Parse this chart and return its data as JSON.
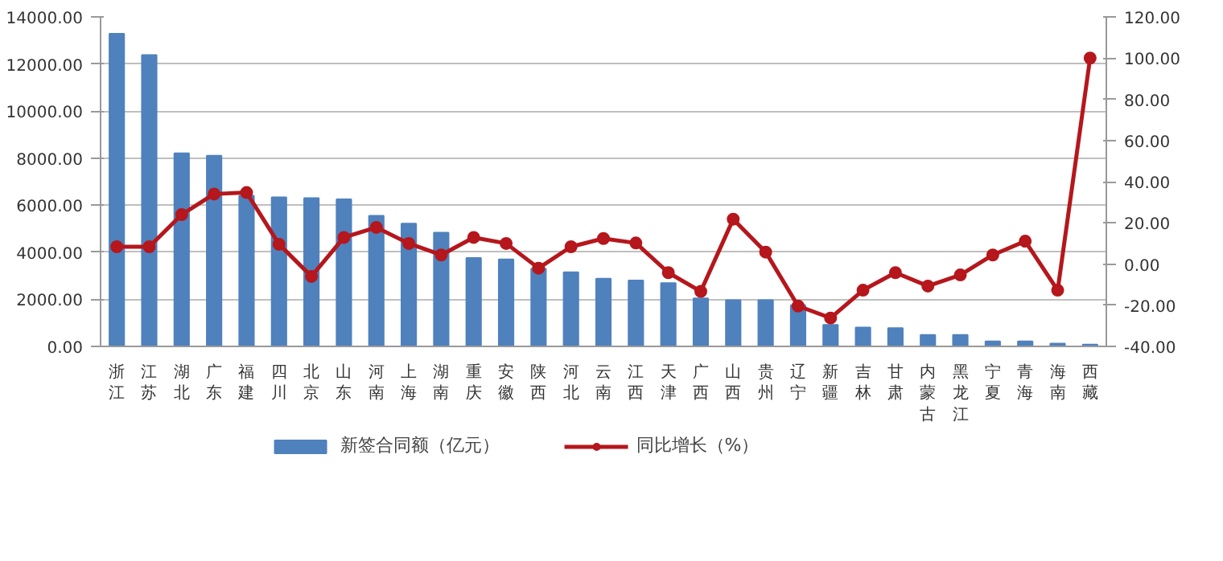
{
  "chart_data": {
    "type": "bar",
    "categories": [
      "浙江",
      "江苏",
      "湖北",
      "广东",
      "福建",
      "四川",
      "北京",
      "山东",
      "河南",
      "上海",
      "湖南",
      "重庆",
      "安徽",
      "陕西",
      "河北",
      "云南",
      "江西",
      "天津",
      "广西",
      "山西",
      "贵州",
      "辽宁",
      "新疆",
      "吉林",
      "甘肃",
      "内蒙古",
      "黑龙江",
      "宁夏",
      "青海",
      "海南",
      "西藏"
    ],
    "series": [
      {
        "name": "新签合同额（亿元）",
        "color": "#4f81bd",
        "values": [
          13280,
          12380,
          8200,
          8100,
          6400,
          6330,
          6300,
          6250,
          5550,
          5220,
          4830,
          3760,
          3700,
          3300,
          3150,
          2880,
          2800,
          2690,
          2040,
          1960,
          1960,
          1750,
          910,
          800,
          780,
          490,
          490,
          210,
          210,
          120,
          80
        ]
      },
      {
        "name": "同比增长（%）",
        "type": "line",
        "axis": "y2",
        "color": "#b5171c",
        "marker": "circle",
        "values": [
          8.4,
          8.4,
          24,
          34,
          34.7,
          9.6,
          -6,
          12.9,
          17.8,
          10,
          4.4,
          12.9,
          10,
          -2,
          8.4,
          12.4,
          10.2,
          -4.2,
          -13.3,
          21.8,
          5.8,
          -20.4,
          -26.2,
          -12.7,
          -4.2,
          -10.7,
          -5.3,
          4.4,
          11.1,
          -12.7,
          100
        ]
      }
    ],
    "ylim": [
      0,
      14000
    ],
    "yticks": [
      {
        "value": 0,
        "label": "0.00"
      },
      {
        "value": 2000,
        "label": "2000.00"
      },
      {
        "value": 4000,
        "label": "4000.00"
      },
      {
        "value": 6000,
        "label": "6000.00"
      },
      {
        "value": 8000,
        "label": "8000.00"
      },
      {
        "value": 10000,
        "label": "10000.00"
      },
      {
        "value": 12000,
        "label": "12000.00"
      },
      {
        "value": 14000,
        "label": "14000.00"
      }
    ],
    "y2lim": [
      -40,
      120
    ],
    "y2ticks": [
      {
        "value": -40,
        "label": "-40.00"
      },
      {
        "value": -20,
        "label": "-20.00"
      },
      {
        "value": 0,
        "label": "0.00"
      },
      {
        "value": 20,
        "label": "20.00"
      },
      {
        "value": 40,
        "label": "40.00"
      },
      {
        "value": 60,
        "label": "60.00"
      },
      {
        "value": 80,
        "label": "80.00"
      },
      {
        "value": 100,
        "label": "100.00"
      },
      {
        "value": 120,
        "label": "120.00"
      }
    ],
    "grid": "y",
    "legend": "bottom"
  }
}
